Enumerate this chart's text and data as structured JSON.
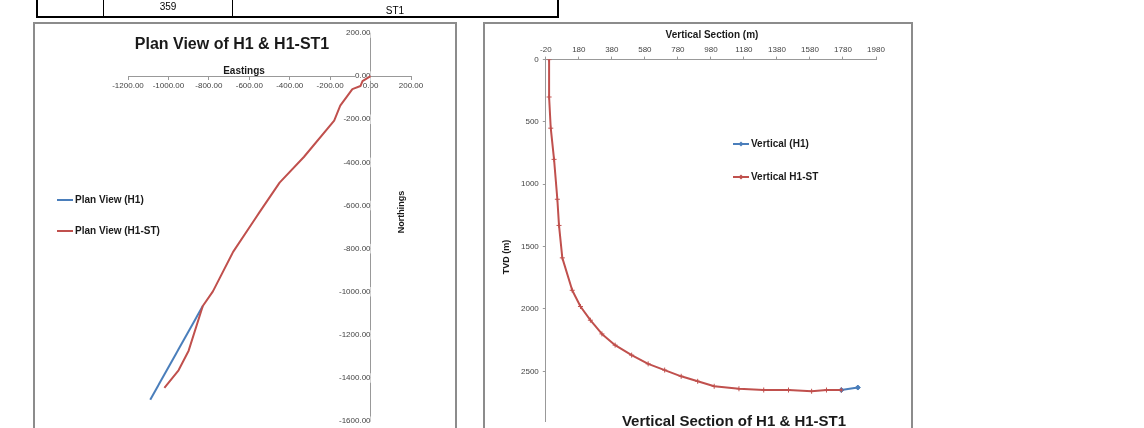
{
  "chart_data": [
    {
      "type": "other",
      "annotations": [
        "359",
        "ST1"
      ]
    },
    {
      "type": "line",
      "title": "Plan View of H1 & H1-ST1",
      "xlabel": "Eastings",
      "ylabel": "Northings",
      "legend": "left",
      "xlim": [
        -1200,
        200
      ],
      "xticks": [
        {
          "value": -1200,
          "label": "-1200.00"
        },
        {
          "value": -1000,
          "label": "-1000.00"
        },
        {
          "value": -800,
          "label": "-800.00"
        },
        {
          "value": -600,
          "label": "-600.00"
        },
        {
          "value": -400,
          "label": "-400.00"
        },
        {
          "value": -200,
          "label": "-200.00"
        },
        {
          "value": 0,
          "label": "0.00"
        },
        {
          "value": 200,
          "label": "200.00"
        }
      ],
      "ylim": [
        -1600,
        200
      ],
      "yticks": [
        {
          "value": -1600,
          "label": "-1600.00"
        },
        {
          "value": -1400,
          "label": "-1400.00"
        },
        {
          "value": -1200,
          "label": "-1200.00"
        },
        {
          "value": -1000,
          "label": "-1000.00"
        },
        {
          "value": -800,
          "label": "-800.00"
        },
        {
          "value": -600,
          "label": "-600.00"
        },
        {
          "value": -400,
          "label": "-400.00"
        },
        {
          "value": -200,
          "label": "-200.00"
        },
        {
          "value": 0,
          "label": "0.00"
        },
        {
          "value": 200,
          "label": "200.00"
        }
      ],
      "series": [
        {
          "name": "Plan View (H1)",
          "color": "#4a7ebb",
          "x": [
            -830,
            -1090
          ],
          "values": [
            -1066,
            -1501
          ]
        },
        {
          "name": "Plan View (H1-ST)",
          "color": "#c0504d",
          "x": [
            0,
            -40,
            -50,
            -90,
            -150,
            -180,
            -330,
            -450,
            -550,
            -680,
            -780,
            -830,
            -900,
            -950,
            -1020
          ],
          "values": [
            0,
            -23,
            -46,
            -60,
            -137,
            -206,
            -375,
            -494,
            -632,
            -815,
            -998,
            -1066,
            -1273,
            -1364,
            -1446
          ]
        }
      ]
    },
    {
      "type": "line",
      "title": "Vertical Section of H1 & H1-ST1",
      "xlabel": "Vertical Section (m)",
      "ylabel": "TVD (m)",
      "legend": "right",
      "xlim": [
        -20,
        1980
      ],
      "xticks": [
        -20,
        180,
        380,
        580,
        780,
        980,
        1180,
        1380,
        1580,
        1780,
        1980
      ],
      "ylim": [
        2900,
        0
      ],
      "yticks": [
        0,
        500,
        1000,
        1500,
        2000,
        2500
      ],
      "series": [
        {
          "name": "Vertical (H1)",
          "color": "#4a7ebb",
          "marker": "diamond",
          "x": [
            1770,
            1870
          ],
          "values": [
            2650,
            2630
          ]
        },
        {
          "name": "Vertical H1-ST",
          "color": "#c0504d",
          "marker": "cross",
          "x": [
            0,
            0,
            10,
            30,
            50,
            60,
            80,
            140,
            190,
            250,
            320,
            400,
            500,
            600,
            700,
            800,
            900,
            1000,
            1150,
            1300,
            1450,
            1590,
            1680,
            1770
          ],
          "values": [
            0,
            300,
            550,
            800,
            1120,
            1330,
            1590,
            1850,
            1980,
            2090,
            2200,
            2290,
            2370,
            2440,
            2490,
            2540,
            2580,
            2620,
            2640,
            2650,
            2650,
            2660,
            2650,
            2650
          ]
        }
      ]
    }
  ]
}
